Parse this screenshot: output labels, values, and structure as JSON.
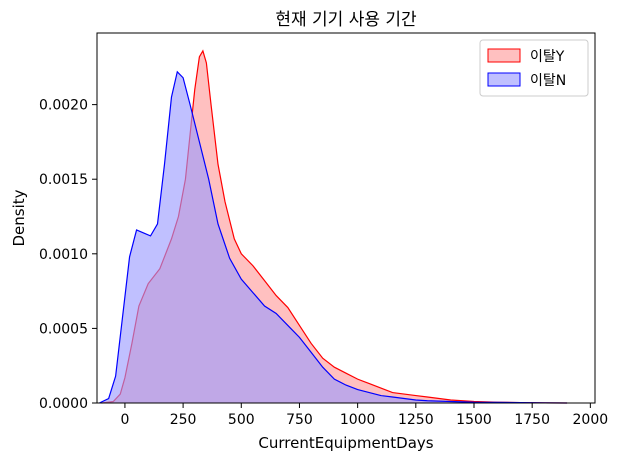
{
  "chart_data": {
    "type": "area",
    "title": "현재 기기 사용 기간",
    "xlabel": "CurrentEquipmentDays",
    "ylabel": "Density",
    "xlim": [
      -120,
      2020
    ],
    "ylim": [
      0,
      0.00248
    ],
    "xticks": [
      0,
      250,
      500,
      750,
      1000,
      1250,
      1500,
      1750,
      2000
    ],
    "xtick_labels": [
      "0",
      "250",
      "500",
      "750",
      "1000",
      "1250",
      "1500",
      "1750",
      "2000"
    ],
    "yticks": [
      0,
      0.0005,
      0.001,
      0.0015,
      0.002
    ],
    "ytick_labels": [
      "0.0000",
      "0.0005",
      "0.0010",
      "0.0015",
      "0.0020"
    ],
    "grid": false,
    "legend_position": "top-right",
    "series": [
      {
        "name": "이탈Y",
        "color": "#ff0000",
        "fill": "#ff9999",
        "x": [
          -100,
          -50,
          -20,
          0,
          30,
          60,
          100,
          150,
          200,
          230,
          260,
          280,
          300,
          320,
          335,
          350,
          370,
          400,
          430,
          470,
          500,
          550,
          600,
          650,
          700,
          750,
          800,
          850,
          900,
          950,
          1000,
          1050,
          1100,
          1150,
          1200,
          1250,
          1300,
          1350,
          1400,
          1450,
          1500,
          1600,
          1700,
          1800,
          1900
        ],
        "y": [
          0,
          1e-05,
          6e-05,
          0.00017,
          0.0004,
          0.00065,
          0.0008,
          0.0009,
          0.0011,
          0.00125,
          0.0015,
          0.0018,
          0.0021,
          0.00232,
          0.00236,
          0.00228,
          0.002,
          0.0016,
          0.00135,
          0.0011,
          0.001,
          0.00092,
          0.00082,
          0.00072,
          0.00064,
          0.00052,
          0.0004,
          0.0003,
          0.00024,
          0.0002,
          0.00016,
          0.00013,
          0.0001,
          7e-05,
          6e-05,
          5e-05,
          4e-05,
          3e-05,
          2e-05,
          1.5e-05,
          1e-05,
          5e-06,
          3e-06,
          1e-06,
          0
        ]
      },
      {
        "name": "이탈N",
        "color": "#0000ff",
        "fill": "#9999ff",
        "x": [
          -110,
          -70,
          -40,
          -10,
          20,
          50,
          80,
          110,
          140,
          170,
          200,
          225,
          250,
          280,
          320,
          360,
          400,
          450,
          500,
          550,
          600,
          650,
          700,
          750,
          800,
          850,
          900,
          950,
          1000,
          1050,
          1100,
          1150,
          1200,
          1250,
          1300,
          1400,
          1500,
          1600,
          1700,
          1800,
          1900
        ],
        "y": [
          0,
          3e-05,
          0.00018,
          0.00058,
          0.00098,
          0.00116,
          0.00114,
          0.00112,
          0.0012,
          0.0016,
          0.00205,
          0.00222,
          0.00218,
          0.002,
          0.00175,
          0.0015,
          0.0012,
          0.00097,
          0.00083,
          0.00074,
          0.00065,
          0.0006,
          0.00052,
          0.00044,
          0.00034,
          0.00024,
          0.00016,
          0.00012,
          9e-05,
          7e-05,
          5e-05,
          4e-05,
          3e-05,
          2e-05,
          1.5e-05,
          1e-05,
          5e-06,
          4e-06,
          3e-06,
          1e-06,
          0
        ]
      }
    ]
  }
}
